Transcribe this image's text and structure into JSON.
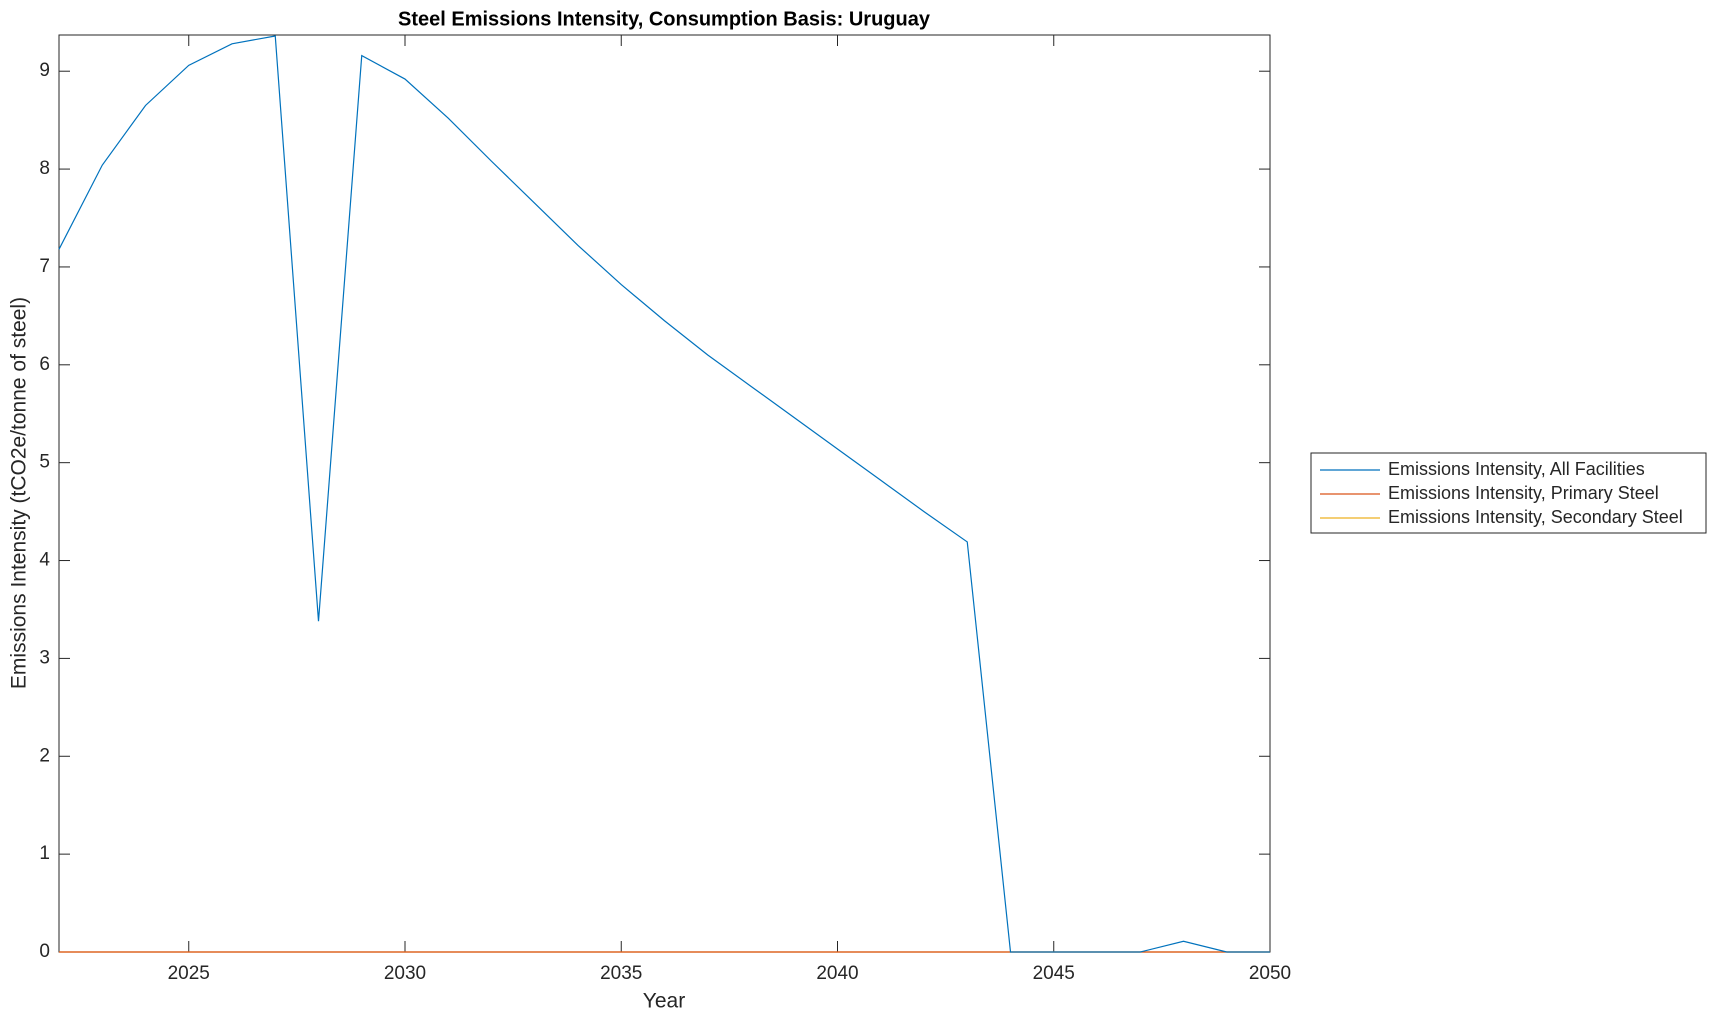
{
  "chart_data": {
    "type": "line",
    "title": "Steel Emissions Intensity, Consumption Basis: Uruguay",
    "xlabel": "Year",
    "ylabel": "Emissions Intensity (tCO2e/tonne of steel)",
    "x": [
      2022,
      2023,
      2024,
      2025,
      2026,
      2027,
      2028,
      2029,
      2030,
      2031,
      2032,
      2033,
      2034,
      2035,
      2036,
      2037,
      2038,
      2039,
      2040,
      2041,
      2042,
      2043,
      2044,
      2045,
      2046,
      2047,
      2048,
      2049,
      2050
    ],
    "series": [
      {
        "name": "Emissions Intensity, All Facilities",
        "color": "#0072bd",
        "values": [
          7.18,
          8.04,
          8.65,
          9.06,
          9.28,
          9.36,
          3.38,
          9.16,
          8.92,
          8.52,
          8.08,
          7.65,
          7.22,
          6.82,
          6.45,
          6.1,
          5.78,
          5.46,
          5.14,
          4.82,
          4.5,
          4.19,
          0,
          0,
          0,
          0,
          0.11,
          0,
          0
        ]
      },
      {
        "name": "Emissions Intensity, Primary Steel",
        "color": "#d95319",
        "values": [
          0,
          0,
          0,
          0,
          0,
          0,
          0,
          0,
          0,
          0,
          0,
          0,
          0,
          0,
          0,
          0,
          0,
          0,
          0,
          0,
          0,
          0,
          0,
          0,
          0,
          0,
          0,
          0,
          0
        ]
      },
      {
        "name": "Emissions Intensity, Secondary Steel",
        "color": "#edb120",
        "values": [
          0,
          0,
          0,
          0,
          0,
          0,
          0,
          0,
          0,
          0,
          0,
          0,
          0,
          0,
          0,
          0,
          0,
          0,
          0,
          0,
          0,
          0,
          0,
          0,
          0,
          0,
          0,
          0,
          0
        ]
      }
    ],
    "xlim": [
      2022,
      2050
    ],
    "xticks": [
      2025,
      2030,
      2035,
      2040,
      2045,
      2050
    ],
    "ylim": [
      0,
      9.37
    ],
    "yticks": [
      0,
      1,
      2,
      3,
      4,
      5,
      6,
      7,
      8,
      9
    ],
    "legend": "right"
  }
}
